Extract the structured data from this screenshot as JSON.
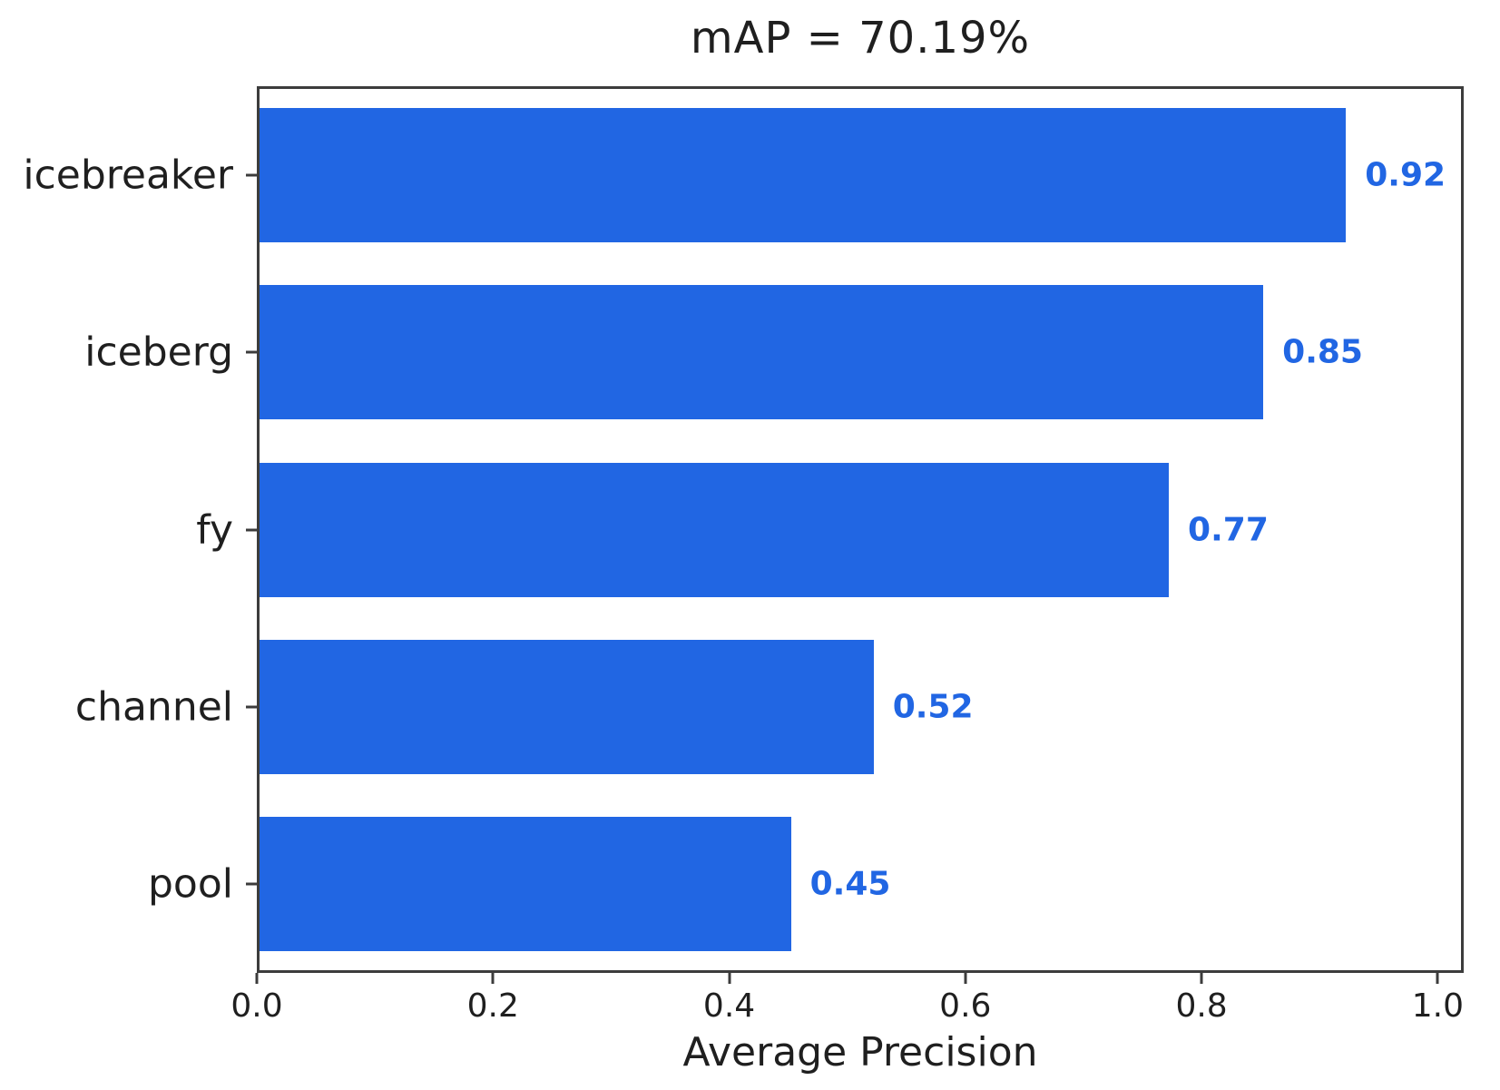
{
  "chart_data": {
    "type": "bar",
    "orientation": "horizontal",
    "title": "mAP = 70.19%",
    "xlabel": "Average Precision",
    "categories": [
      "icebreaker",
      "iceberg",
      "fy",
      "channel",
      "pool"
    ],
    "values": [
      0.92,
      0.85,
      0.77,
      0.52,
      0.45
    ],
    "value_labels": [
      "0.92",
      "0.85",
      "0.77",
      "0.52",
      "0.45"
    ],
    "xticks": [
      {
        "label": "0.0",
        "value": 0.0
      },
      {
        "label": "0.2",
        "value": 0.2
      },
      {
        "label": "0.4",
        "value": 0.4
      },
      {
        "label": "0.6",
        "value": 0.6
      },
      {
        "label": "0.8",
        "value": 0.8
      },
      {
        "label": "1.0",
        "value": 1.0
      }
    ],
    "xlim": [
      0.0,
      1.022
    ],
    "grid": false,
    "legend_position": "none",
    "colors": {
      "bar": "#2166E3",
      "value_label": "#2166E3",
      "axis": "#3c3c3c",
      "text": "#1f1f1f"
    }
  }
}
